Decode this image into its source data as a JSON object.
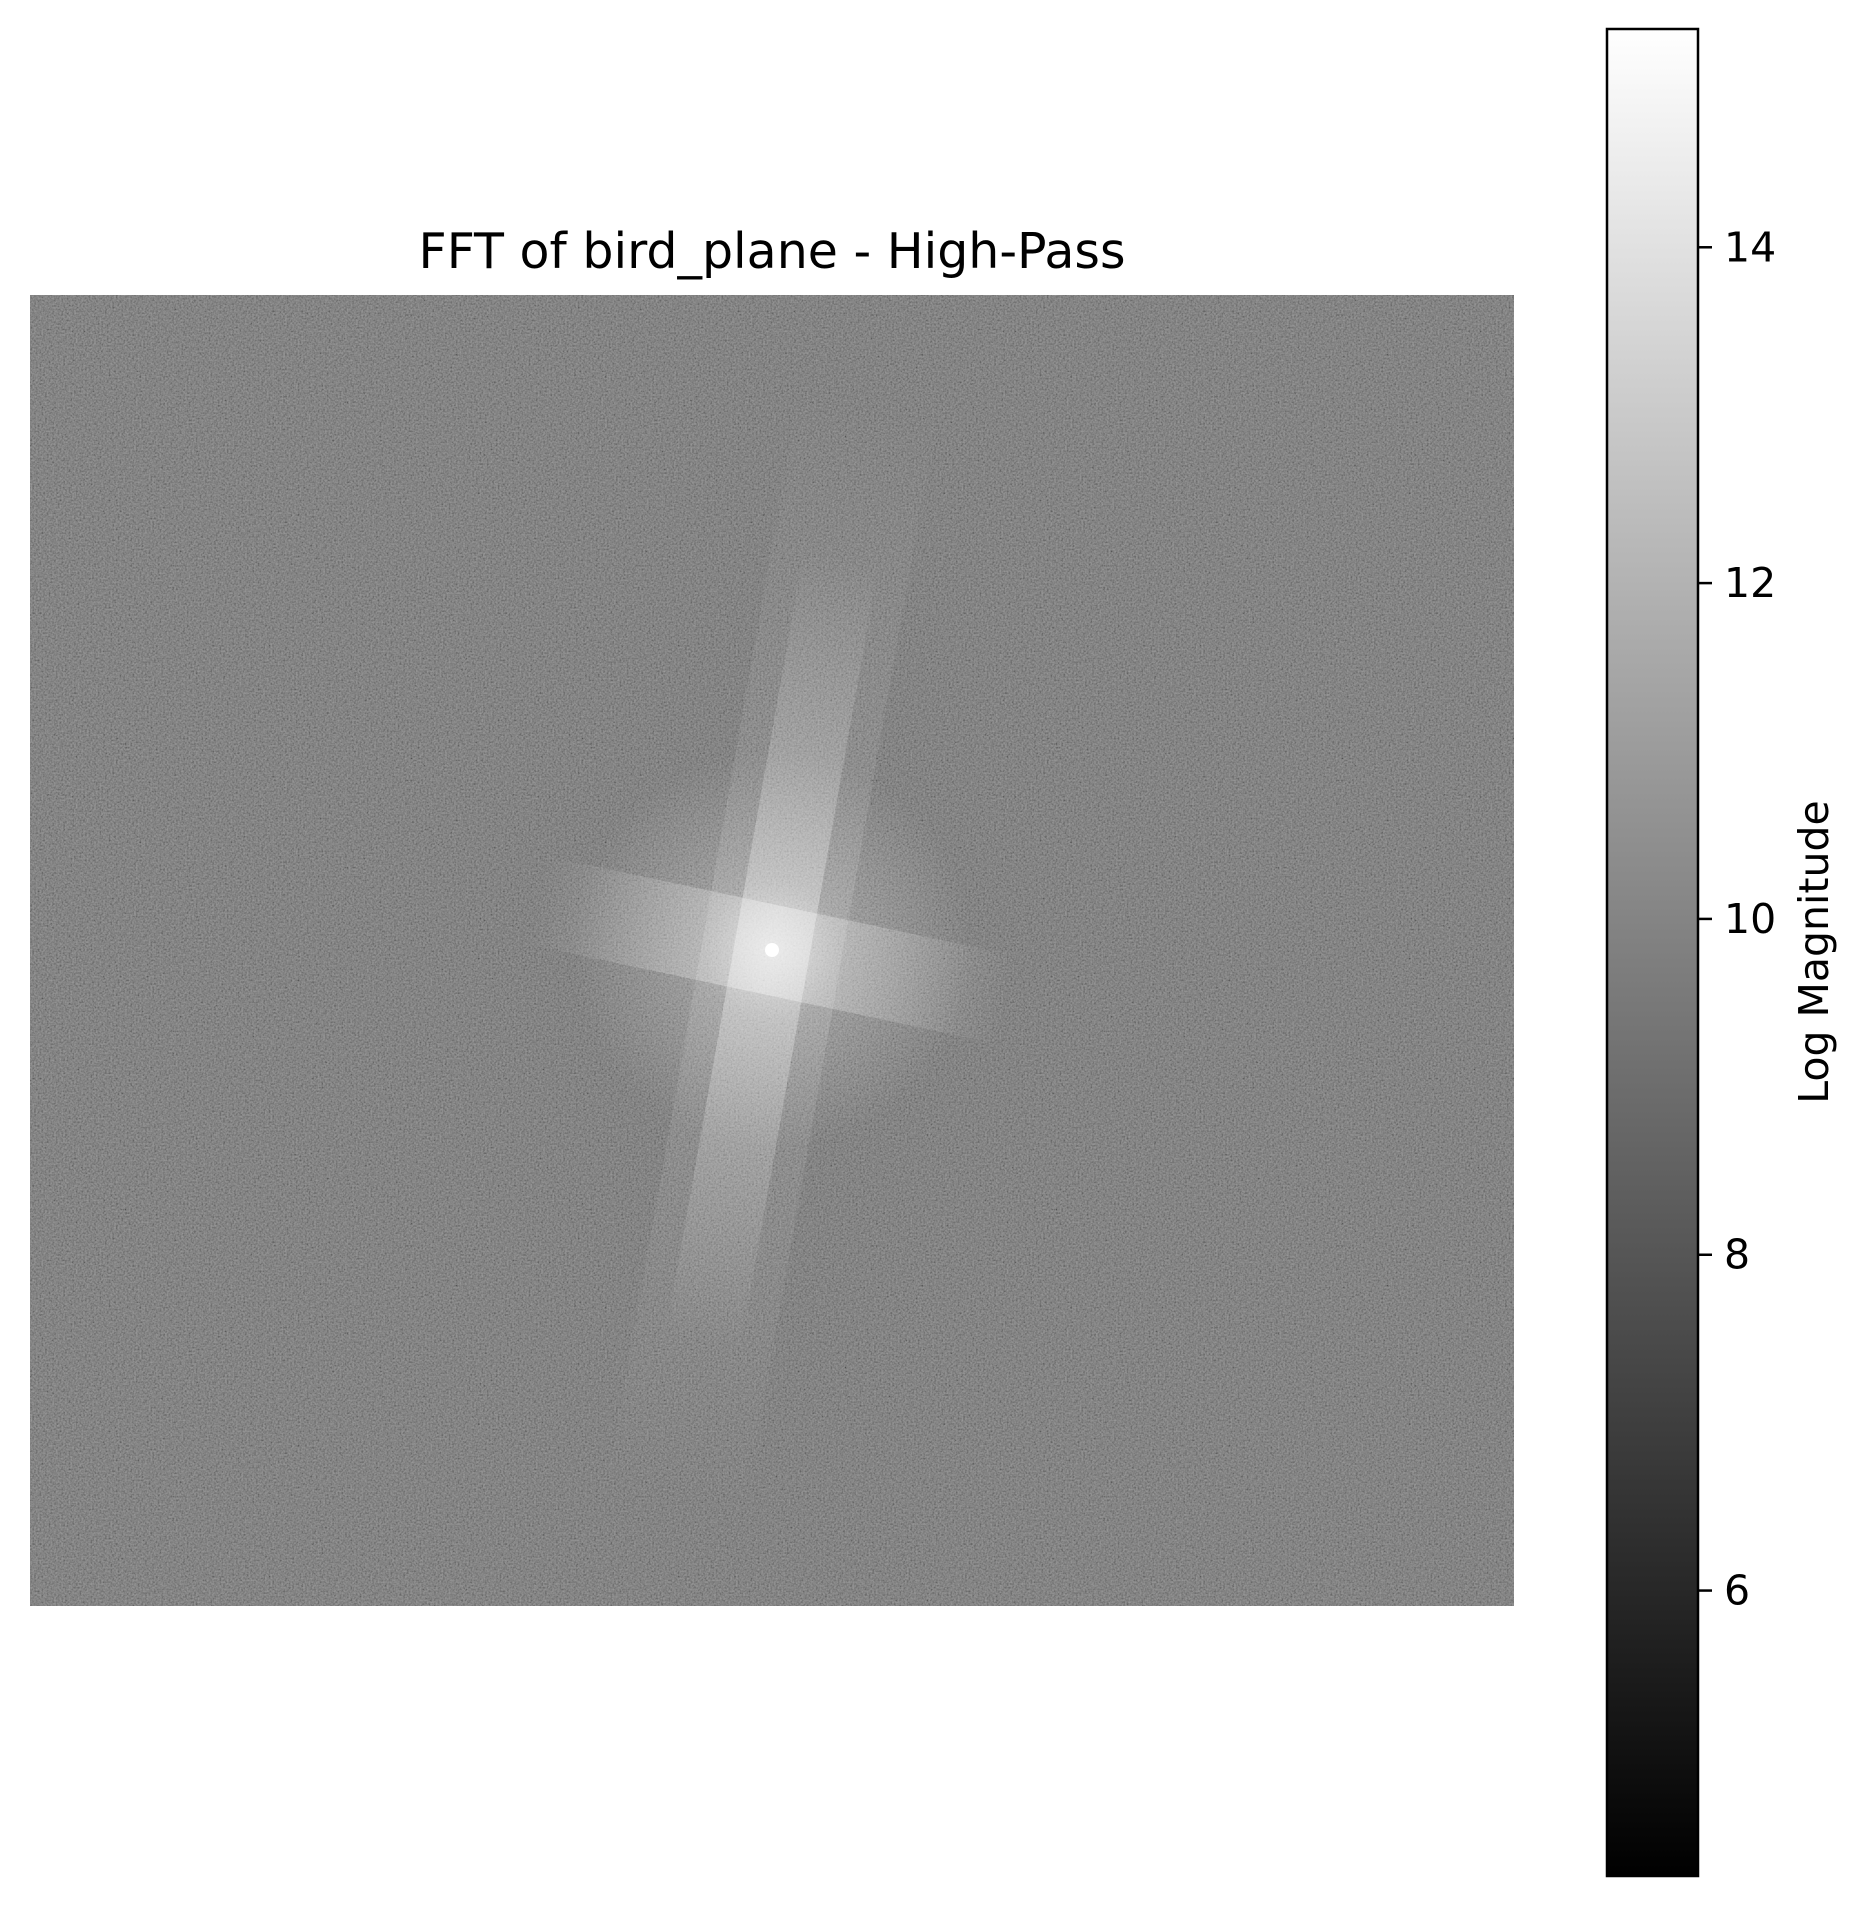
{
  "chart_data": {
    "type": "heatmap",
    "title": "FFT of bird_plane - High-Pass",
    "axes_visible": false,
    "colormap": "gray",
    "image": {
      "description_tag": "centered 2D FFT log-magnitude spectrum",
      "background_level": 9.9,
      "center_peak_level": 15.1,
      "orientation_of_streaks_deg": [
        -80,
        -12
      ]
    },
    "colorbar": {
      "label": "Log Magnitude",
      "vmin": 4.3,
      "vmax": 15.3,
      "ticks": [
        6,
        8,
        10,
        12,
        14
      ],
      "tick_labels": [
        "6",
        "8",
        "10",
        "12",
        "14"
      ],
      "color_low": "#000000",
      "color_high": "#ffffff"
    }
  }
}
